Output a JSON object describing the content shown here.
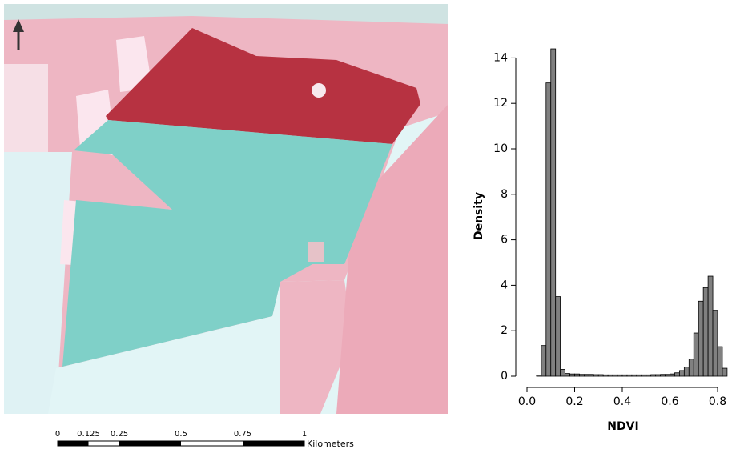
{
  "map": {
    "scale_labels": [
      "0",
      "0.125",
      "0.25",
      "0.5",
      "0.75",
      "1"
    ],
    "unit": "Kilometers"
  },
  "chart_data": {
    "type": "histogram",
    "xlabel": "NDVI",
    "ylabel": "Density",
    "bins": [
      0.04,
      0.06,
      0.08,
      0.1,
      0.12,
      0.14,
      0.16,
      0.18,
      0.2,
      0.22,
      0.24,
      0.26,
      0.28,
      0.3,
      0.32,
      0.34,
      0.36,
      0.38,
      0.4,
      0.42,
      0.44,
      0.46,
      0.48,
      0.5,
      0.52,
      0.54,
      0.56,
      0.58,
      0.6,
      0.62,
      0.64,
      0.66,
      0.68,
      0.7,
      0.72,
      0.74,
      0.76,
      0.78,
      0.8,
      0.82,
      0.84
    ],
    "values": [
      0.05,
      1.35,
      12.9,
      14.4,
      3.5,
      0.3,
      0.12,
      0.1,
      0.1,
      0.08,
      0.08,
      0.08,
      0.07,
      0.07,
      0.06,
      0.06,
      0.06,
      0.06,
      0.06,
      0.06,
      0.06,
      0.06,
      0.06,
      0.06,
      0.07,
      0.07,
      0.08,
      0.08,
      0.1,
      0.15,
      0.25,
      0.4,
      0.75,
      1.9,
      3.3,
      3.9,
      4.4,
      2.9,
      1.3,
      0.35
    ],
    "color": "#808080",
    "xlim": [
      0,
      0.85
    ],
    "ylim": [
      0,
      15
    ],
    "xticks": [
      {
        "value": 0,
        "label": "0.0"
      },
      {
        "value": 0.2,
        "label": "0.2"
      },
      {
        "value": 0.4,
        "label": "0.4"
      },
      {
        "value": 0.6,
        "label": "0.6"
      },
      {
        "value": 0.8,
        "label": "0.8"
      }
    ],
    "yticks": [
      0,
      2,
      4,
      6,
      8,
      10,
      12,
      14
    ]
  }
}
